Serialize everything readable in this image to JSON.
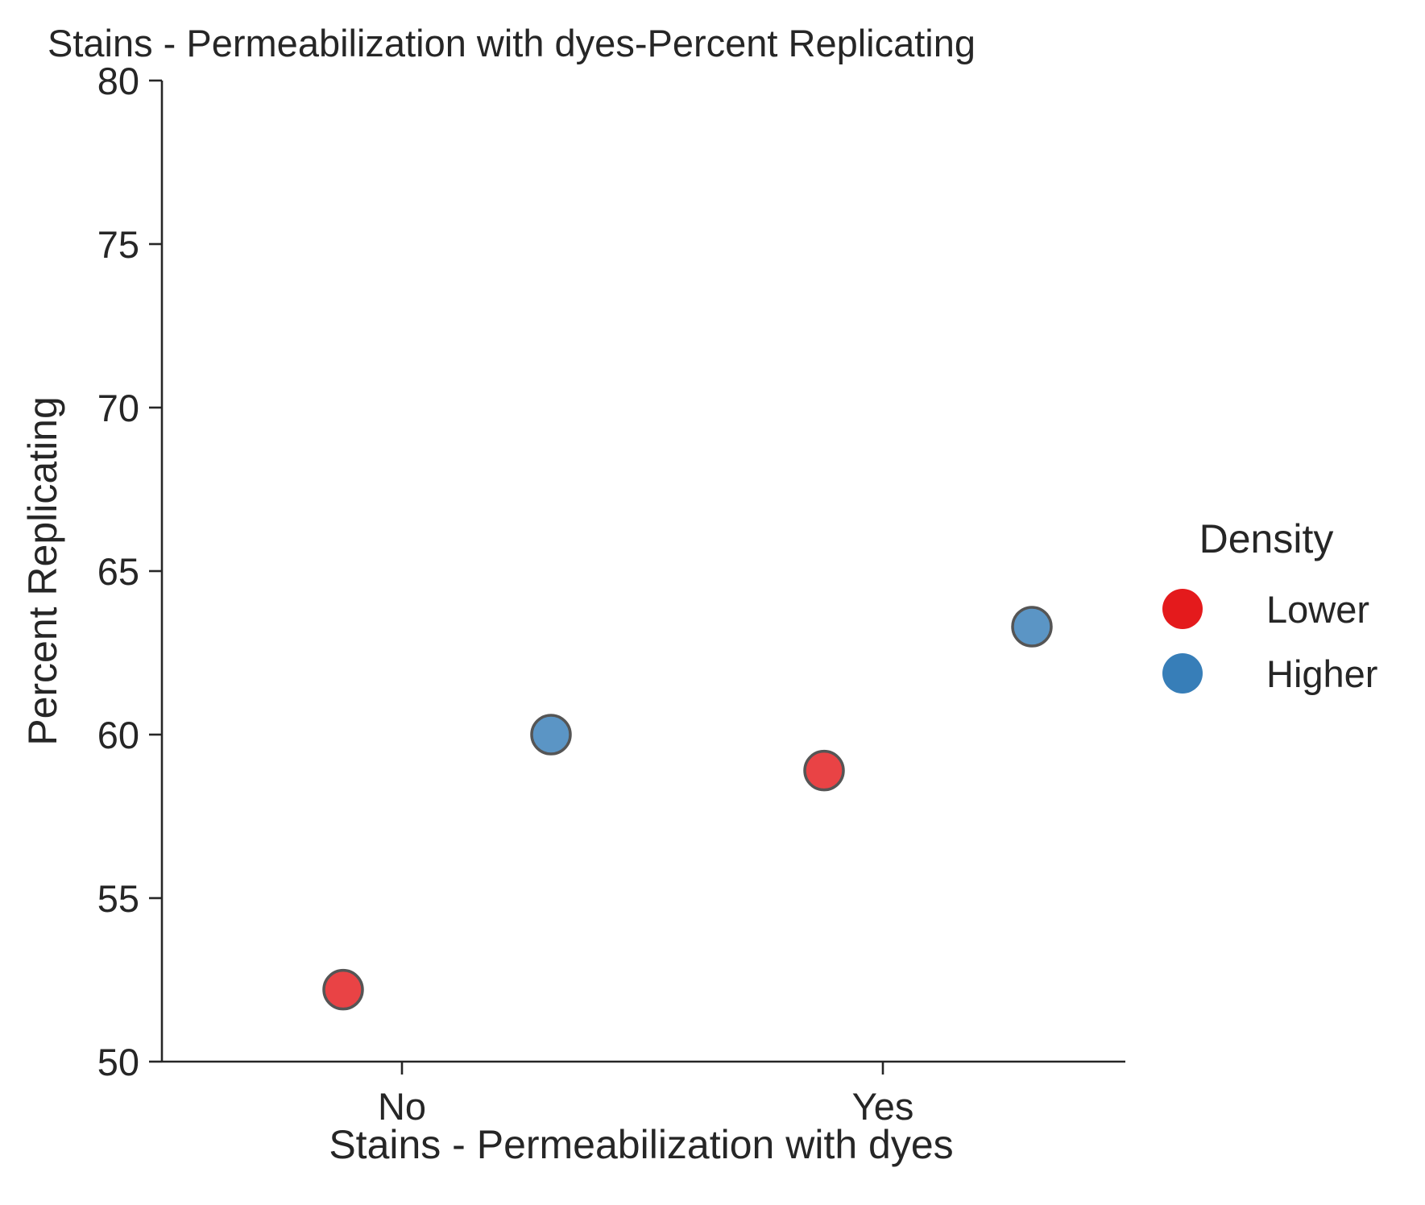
{
  "chart_data": {
    "type": "scatter",
    "title": "Stains - Permeabilization with dyes-Percent Replicating",
    "xlabel": "Stains - Permeabilization with dyes",
    "ylabel": "Percent Replicating",
    "categories": [
      "No",
      "Yes"
    ],
    "ylim": [
      50,
      80
    ],
    "yticks": [
      "50",
      "55",
      "60",
      "65",
      "70",
      "75",
      "80"
    ],
    "grid": false,
    "legend": {
      "title": "Density",
      "placement": "right",
      "entries": [
        {
          "label": "Lower",
          "color": "#e41a1c"
        },
        {
          "label": "Higher",
          "color": "#377eb8"
        }
      ]
    },
    "series": [
      {
        "name": "Lower",
        "color": "#e41a1c",
        "values": [
          52.2,
          58.9
        ]
      },
      {
        "name": "Higher",
        "color": "#377eb8",
        "values": [
          60.0,
          63.3
        ]
      }
    ]
  }
}
